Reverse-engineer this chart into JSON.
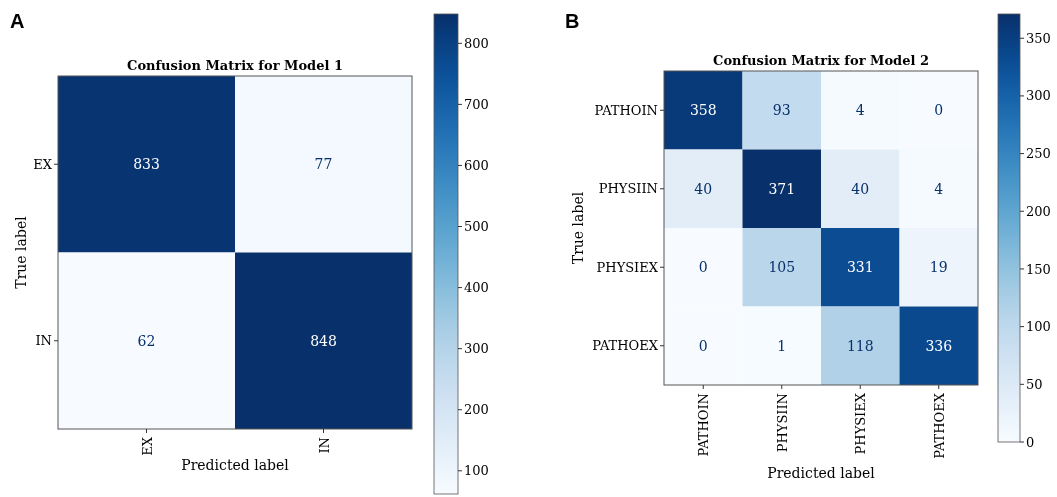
{
  "chart_data": [
    {
      "type": "heatmap",
      "title": "Confusion Matrix for Model 1",
      "xlabel": "Predicted label",
      "ylabel": "True label",
      "annotations": [
        "A"
      ],
      "categories": [
        "EX",
        "IN"
      ],
      "y_categories": [
        "EX",
        "IN"
      ],
      "cells": [
        [
          833,
          77
        ],
        [
          62,
          848
        ]
      ],
      "data_labels": true,
      "clim": [
        62,
        848
      ],
      "cticks": [
        100,
        200,
        300,
        400,
        500,
        600,
        700,
        800
      ]
    },
    {
      "type": "heatmap",
      "title": "Confusion Matrix for Model 2",
      "xlabel": "Predicted label",
      "ylabel": "True label",
      "annotations": [
        "B"
      ],
      "categories": [
        "PATHOIN",
        "PHYSIIN",
        "PHYSIEX",
        "PATHOEX"
      ],
      "y_categories": [
        "PATHOIN",
        "PHYSIIN",
        "PHYSIEX",
        "PATHOEX"
      ],
      "cells": [
        [
          358,
          93,
          4,
          0
        ],
        [
          40,
          371,
          40,
          4
        ],
        [
          0,
          105,
          331,
          19
        ],
        [
          0,
          1,
          118,
          336
        ]
      ],
      "data_labels": true,
      "clim": [
        0,
        371
      ],
      "cticks": [
        0,
        50,
        100,
        150,
        200,
        250,
        300,
        350
      ]
    }
  ]
}
